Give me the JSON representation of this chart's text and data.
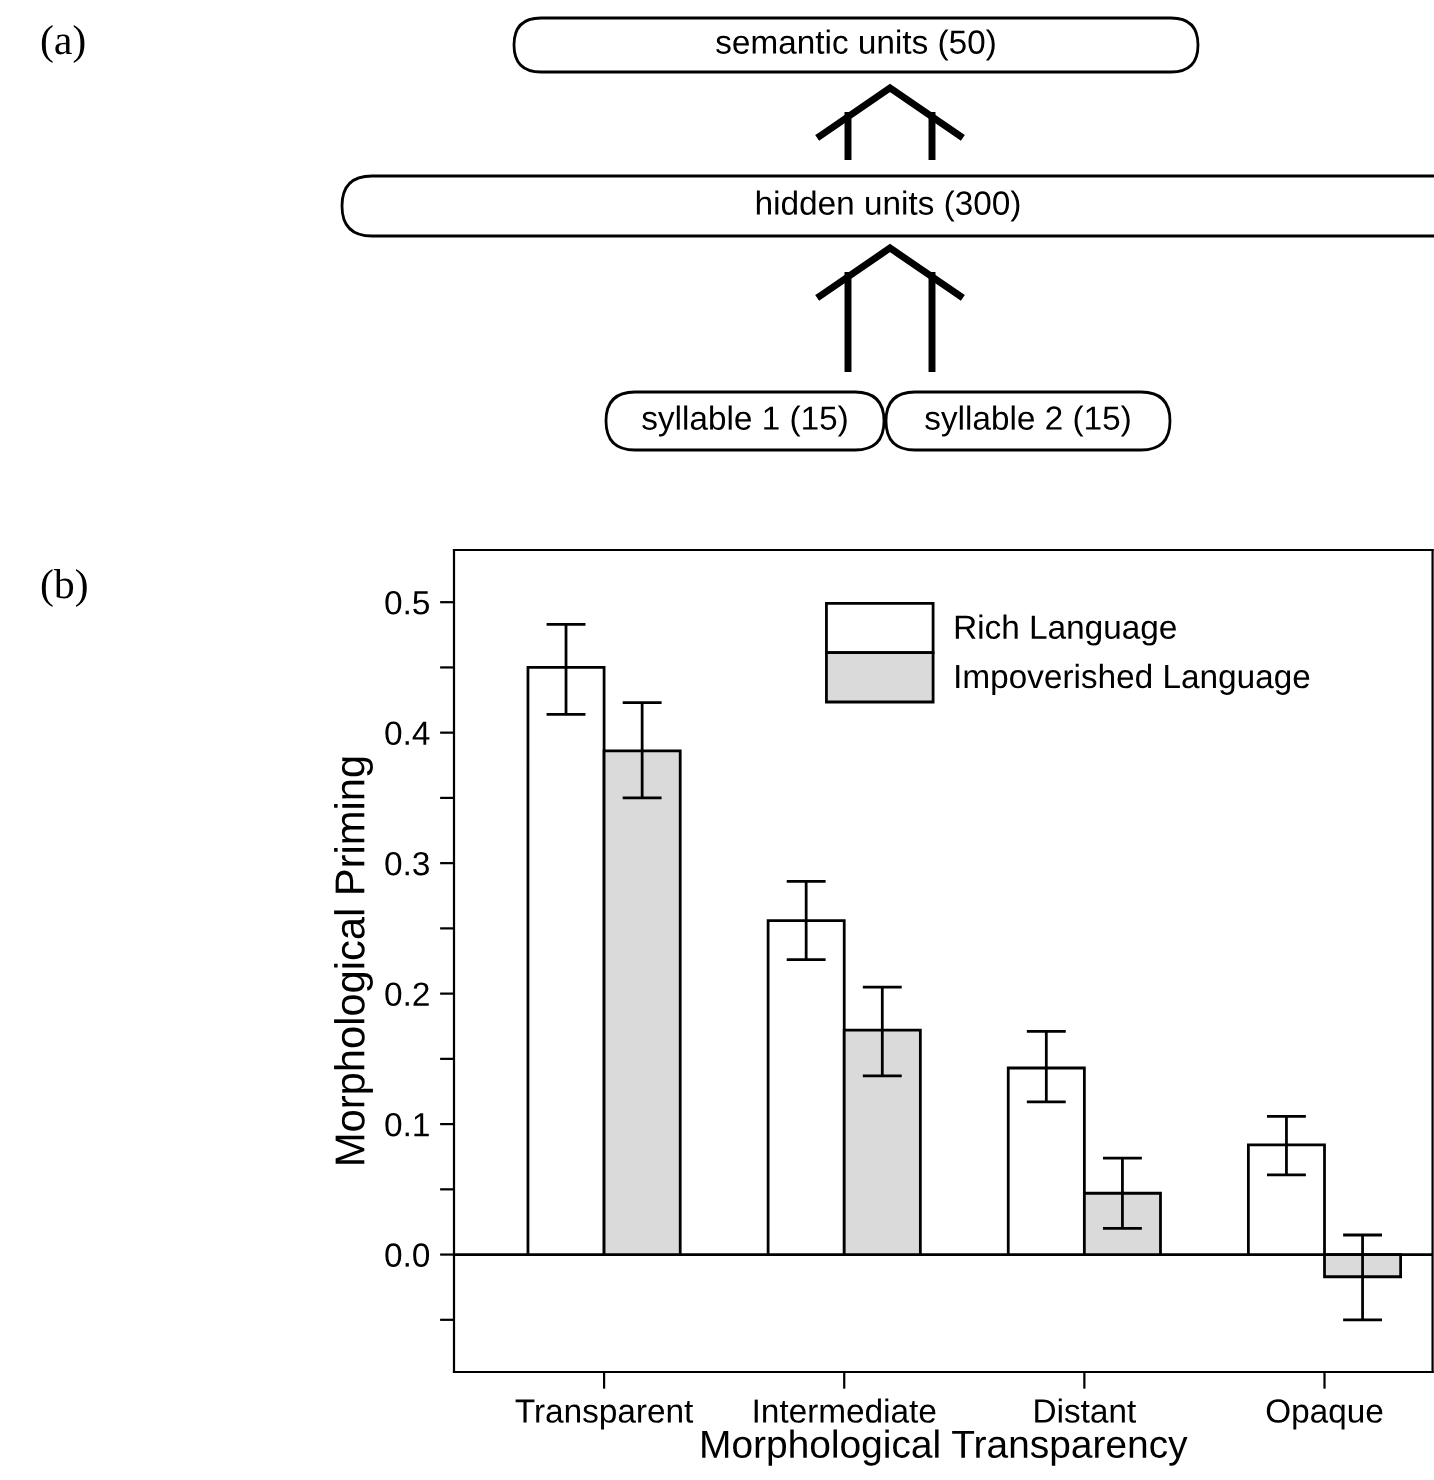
{
  "chart_data": [
    {
      "type": "other",
      "annotations": [
        "(a)",
        "semantic units (50)",
        "hidden units (300)",
        "syllable 1 (15)",
        "syllable 2 (15)"
      ]
    },
    {
      "type": "bar",
      "annotations": [
        "(b)"
      ],
      "xlabel": "Morphological Transparency",
      "ylabel": "Morphological Priming",
      "categories": [
        "Transparent",
        "Intermediate",
        "Distant",
        "Opaque"
      ],
      "series": [
        {
          "name": "Rich Language",
          "color": "#ffffff",
          "values": [
            0.45,
            0.256,
            0.143,
            0.084
          ],
          "errors": [
            [
              0.414,
              0.483
            ],
            [
              0.226,
              0.286
            ],
            [
              0.117,
              0.171
            ],
            [
              0.061,
              0.106
            ]
          ]
        },
        {
          "name": "Impoverished Language",
          "color": "#dadada",
          "values": [
            0.386,
            0.172,
            0.047,
            -0.017
          ],
          "errors": [
            [
              0.35,
              0.423
            ],
            [
              0.137,
              0.205
            ],
            [
              0.02,
              0.074
            ],
            [
              -0.05,
              0.015
            ]
          ]
        }
      ],
      "ylim": [
        -0.09,
        0.54
      ],
      "yticks": [
        {
          "value": -0.05,
          "label": null
        },
        {
          "value": 0.0,
          "label": "0.0"
        },
        {
          "value": 0.05,
          "label": null
        },
        0.1,
        {
          "value": 0.15,
          "label": null
        },
        0.2,
        {
          "value": 0.25,
          "label": null
        },
        0.3,
        {
          "value": 0.35,
          "label": null
        },
        0.4,
        {
          "value": 0.45,
          "label": null
        },
        0.5
      ],
      "ref_lines": [
        {
          "axis": "y",
          "value": 0
        }
      ],
      "grid": false,
      "legend": "top right"
    }
  ]
}
